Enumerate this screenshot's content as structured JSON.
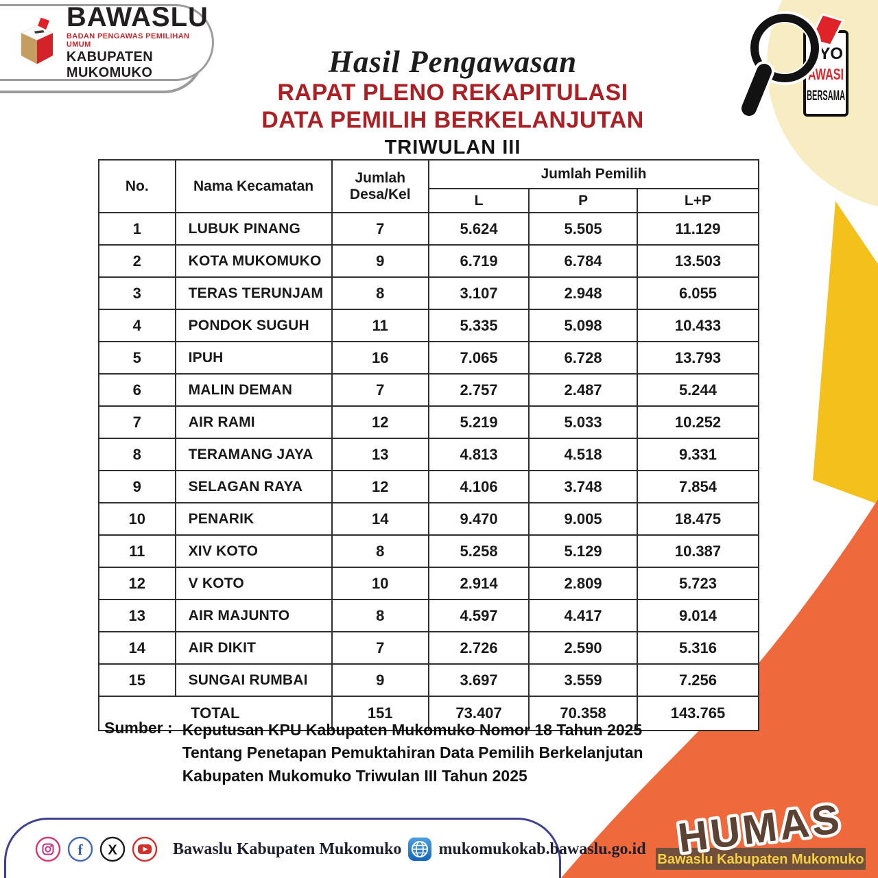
{
  "bawaslu_card": {
    "name": "BAWASLU",
    "subtitle": "BADAN PENGAWAS PEMILIHAN UMUM",
    "region": "KABUPATEN MUKOMUKO"
  },
  "awasi_badge": {
    "line1": "AYO",
    "line2": "AWASI",
    "line3": "BERSAMA"
  },
  "title": {
    "script": "Hasil Pengawasan",
    "line1": "RAPAT PLENO REKAPITULASI",
    "line2": "DATA PEMILIH BERKELANJUTAN",
    "line3": "TRIWULAN III"
  },
  "table": {
    "header": {
      "no": "No.",
      "kecamatan": "Nama Kecamatan",
      "jumlah": "Jumlah",
      "desa_kel": "Desa/Kel",
      "jumlah_pemilih": "Jumlah Pemilih",
      "l": "L",
      "p": "P",
      "lp": "L+P"
    },
    "rows": [
      {
        "no": "1",
        "name": "LUBUK PINANG",
        "desa": "7",
        "l": "5.624",
        "p": "5.505",
        "lp": "11.129"
      },
      {
        "no": "2",
        "name": "KOTA MUKOMUKO",
        "desa": "9",
        "l": "6.719",
        "p": "6.784",
        "lp": "13.503"
      },
      {
        "no": "3",
        "name": "TERAS TERUNJAM",
        "desa": "8",
        "l": "3.107",
        "p": "2.948",
        "lp": "6.055"
      },
      {
        "no": "4",
        "name": "PONDOK SUGUH",
        "desa": "11",
        "l": "5.335",
        "p": "5.098",
        "lp": "10.433"
      },
      {
        "no": "5",
        "name": "IPUH",
        "desa": "16",
        "l": "7.065",
        "p": "6.728",
        "lp": "13.793"
      },
      {
        "no": "6",
        "name": "MALIN DEMAN",
        "desa": "7",
        "l": "2.757",
        "p": "2.487",
        "lp": "5.244"
      },
      {
        "no": "7",
        "name": "AIR RAMI",
        "desa": "12",
        "l": "5.219",
        "p": "5.033",
        "lp": "10.252"
      },
      {
        "no": "8",
        "name": "TERAMANG JAYA",
        "desa": "13",
        "l": "4.813",
        "p": "4.518",
        "lp": "9.331"
      },
      {
        "no": "9",
        "name": "SELAGAN RAYA",
        "desa": "12",
        "l": "4.106",
        "p": "3.748",
        "lp": "7.854"
      },
      {
        "no": "10",
        "name": "PENARIK",
        "desa": "14",
        "l": "9.470",
        "p": "9.005",
        "lp": "18.475"
      },
      {
        "no": "11",
        "name": "XIV KOTO",
        "desa": "8",
        "l": "5.258",
        "p": "5.129",
        "lp": "10.387"
      },
      {
        "no": "12",
        "name": "V KOTO",
        "desa": "10",
        "l": "2.914",
        "p": "2.809",
        "lp": "5.723"
      },
      {
        "no": "13",
        "name": "AIR MAJUNTO",
        "desa": "8",
        "l": "4.597",
        "p": "4.417",
        "lp": "9.014"
      },
      {
        "no": "14",
        "name": "AIR DIKIT",
        "desa": "7",
        "l": "2.726",
        "p": "2.590",
        "lp": "5.316"
      },
      {
        "no": "15",
        "name": "SUNGAI RUMBAI",
        "desa": "9",
        "l": "3.697",
        "p": "3.559",
        "lp": "7.256"
      }
    ],
    "total": {
      "label": "TOTAL",
      "desa": "151",
      "l": "73.407",
      "p": "70.358",
      "lp": "143.765"
    }
  },
  "source": {
    "label": "Sumber :",
    "lines": [
      "Keputusan KPU Kabupaten Mukomuko Nomor 18 Tahun 2025",
      "Tentang Penetapan Pemuktahiran Data Pemilih Berkelanjutan",
      "Kabupaten Mukomuko Triwulan III Tahun 2025"
    ]
  },
  "footer": {
    "icons": [
      "instagram-icon",
      "facebook-icon",
      "x-icon",
      "youtube-icon",
      "globe-icon"
    ],
    "account": "Bawaslu Kabupaten Mukomuko",
    "website": "mukomukokab.bawaslu.go.id"
  },
  "humas": {
    "title": "HUMAS",
    "subtitle": "Bawaslu Kabupaten Mukomuko"
  },
  "colors": {
    "title_red": "#ab2025",
    "accent_red": "#d8282c",
    "yellow_triangle": "#f4c01c",
    "cream_blob": "#f8ecc2",
    "orange_corner": "#ee6a3c",
    "footer_border_navy": "#3e418f",
    "humas_brown": "#5c4233",
    "humas_bar_brown": "#70503a",
    "humas_yellow": "#f6cf45",
    "logo_tan": "#c59d61",
    "logo_red": "#d2232a"
  }
}
